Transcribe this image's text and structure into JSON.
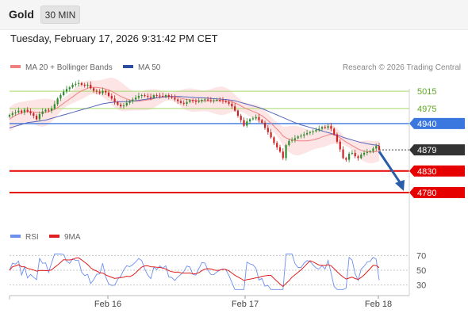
{
  "header": {
    "symbol": "Gold",
    "timeframe": "30 MIN",
    "timestamp": "Tuesday, February 17, 2026 9:31:42 PM CET"
  },
  "legend": {
    "ma20_label": "MA 20 + Bollinger Bands",
    "ma50_label": "MA 50",
    "copyright": "Research © 2026 Trading Central"
  },
  "rsi_legend": {
    "rsi_label": "RSI",
    "ma_label": "9MA"
  },
  "colors": {
    "candle_up": "#2e8b2e",
    "candle_down": "#cc2222",
    "bollinger_fill": "#fde2e2",
    "ma20": "#f08080",
    "ma50": "#5566bb",
    "resistance_line": "#a6d96a",
    "pivot_line": "#3a78e0",
    "support_line": "#e60000",
    "arrow": "#2a5da8",
    "rsi_line": "#6d8ff0",
    "rsi_ma_line": "#e02020"
  },
  "chart_data": {
    "type": "candlestick",
    "instrument": "Gold",
    "interval": "30 MIN",
    "y_range": [
      4802,
      5052
    ],
    "x_tick_labels": [
      "Feb 16",
      "Feb 17",
      "Feb 18"
    ],
    "levels": [
      {
        "value": 5015,
        "label": "5015",
        "kind": "resistance"
      },
      {
        "value": 4975,
        "label": "4975",
        "kind": "resistance"
      },
      {
        "value": 4940,
        "label": "4940",
        "kind": "pivot"
      },
      {
        "value": 4879,
        "label": "4879",
        "kind": "last_price"
      },
      {
        "value": 4830,
        "label": "4830",
        "kind": "support"
      },
      {
        "value": 4780,
        "label": "4780",
        "kind": "support"
      }
    ],
    "forecast_arrow": {
      "from": 4879,
      "to": 4780,
      "direction": "down"
    },
    "close": [
      4960,
      4964,
      4966,
      4970,
      4966,
      4972,
      4968,
      4964,
      4958,
      4950,
      4962,
      4968,
      4972,
      4970,
      4975,
      4985,
      4998,
      5006,
      5014,
      5020,
      5024,
      5030,
      5032,
      5034,
      5030,
      5028,
      5030,
      5022,
      5016,
      5014,
      5010,
      5016,
      5012,
      5004,
      4998,
      4990,
      4984,
      4980,
      4982,
      4988,
      4992,
      4996,
      5000,
      5004,
      5006,
      5004,
      5002,
      5000,
      5006,
      5005,
      5004,
      5003,
      5006,
      5002,
      5000,
      4996,
      4992,
      4988,
      4986,
      4990,
      4994,
      4992,
      4990,
      4992,
      4995,
      4996,
      4994,
      4993,
      4994,
      4995,
      4994,
      4992,
      4990,
      4986,
      4980,
      4970,
      4958,
      4948,
      4935,
      4945,
      4950,
      4952,
      4955,
      4948,
      4942,
      4930,
      4920,
      4908,
      4895,
      4885,
      4875,
      4860,
      4890,
      4900,
      4902,
      4906,
      4910,
      4912,
      4915,
      4918,
      4920,
      4922,
      4925,
      4928,
      4932,
      4930,
      4934,
      4928,
      4915,
      4898,
      4880,
      4860,
      4856,
      4870,
      4872,
      4864,
      4860,
      4868,
      4872,
      4874,
      4876,
      4882,
      4888,
      4879
    ],
    "ma20": [
      4950,
      4955,
      4959,
      4962,
      4965,
      4967,
      4968,
      4968,
      4967,
      4966,
      4965,
      4965,
      4966,
      4968,
      4970,
      4973,
      4977,
      4982,
      4987,
      4992,
      4997,
      5002,
      5007,
      5012,
      5016,
      5019,
      5022,
      5024,
      5024,
      5024,
      5023,
      5022,
      5020,
      5018,
      5015,
      5011,
      5007,
      5003,
      5000,
      4997,
      4995,
      4993,
      4992,
      4992,
      4993,
      4994,
      4995,
      4996,
      4998,
      5000,
      5001,
      5002,
      5003,
      5003,
      5003,
      5002,
      5001,
      4999,
      4997,
      4996,
      4995,
      4994,
      4994,
      4993,
      4993,
      4993,
      4993,
      4993,
      4993,
      4993,
      4993,
      4993,
      4992,
      4992,
      4990,
      4988,
      4985,
      4981,
      4977,
      4974,
      4971,
      4968,
      4966,
      4962,
      4958,
      4953,
      4947,
      4941,
      4934,
      4927,
      4920,
      4911,
      4907,
      4904,
      4902,
      4901,
      4900,
      4900,
      4900,
      4900,
      4901,
      4902,
      4904,
      4906,
      4909,
      4911,
      4914,
      4915,
      4914,
      4911,
      4907,
      4902,
      4897,
      4893,
      4889,
      4885,
      4881,
      4878,
      4876,
      4875,
      4874,
      4874,
      4875,
      4876
    ],
    "ma50": [
      4930,
      4932,
      4934,
      4936,
      4938,
      4940,
      4942,
      4943,
      4944,
      4945,
      4946,
      4947,
      4948,
      4950,
      4952,
      4954,
      4956,
      4958,
      4960,
      4962,
      4964,
      4966,
      4968,
      4970,
      4972,
      4974,
      4976,
      4978,
      4980,
      4982,
      4984,
      4986,
      4987,
      4988,
      4989,
      4990,
      4990,
      4991,
      4991,
      4991,
      4992,
      4992,
      4993,
      4994,
      4995,
      4996,
      4997,
      4998,
      4999,
      5000,
      5001,
      5002,
      5002,
      5003,
      5003,
      5003,
      5003,
      5003,
      5002,
      5002,
      5001,
      5001,
      5000,
      5000,
      5000,
      4999,
      4999,
      4998,
      4998,
      4997,
      4997,
      4996,
      4996,
      4995,
      4994,
      4993,
      4991,
      4989,
      4987,
      4985,
      4983,
      4981,
      4979,
      4977,
      4975,
      4972,
      4969,
      4966,
      4963,
      4960,
      4957,
      4954,
      4951,
      4948,
      4945,
      4942,
      4940,
      4937,
      4935,
      4933,
      4931,
      4929,
      4927,
      4925,
      4923,
      4921,
      4919,
      4917,
      4915,
      4913,
      4911,
      4908,
      4906,
      4904,
      4902,
      4900,
      4898,
      4896,
      4895,
      4893,
      4892,
      4891,
      4890,
      4889
    ],
    "rsi_axis": {
      "range": [
        20,
        80
      ],
      "ticks": [
        70,
        50,
        30
      ]
    }
  }
}
